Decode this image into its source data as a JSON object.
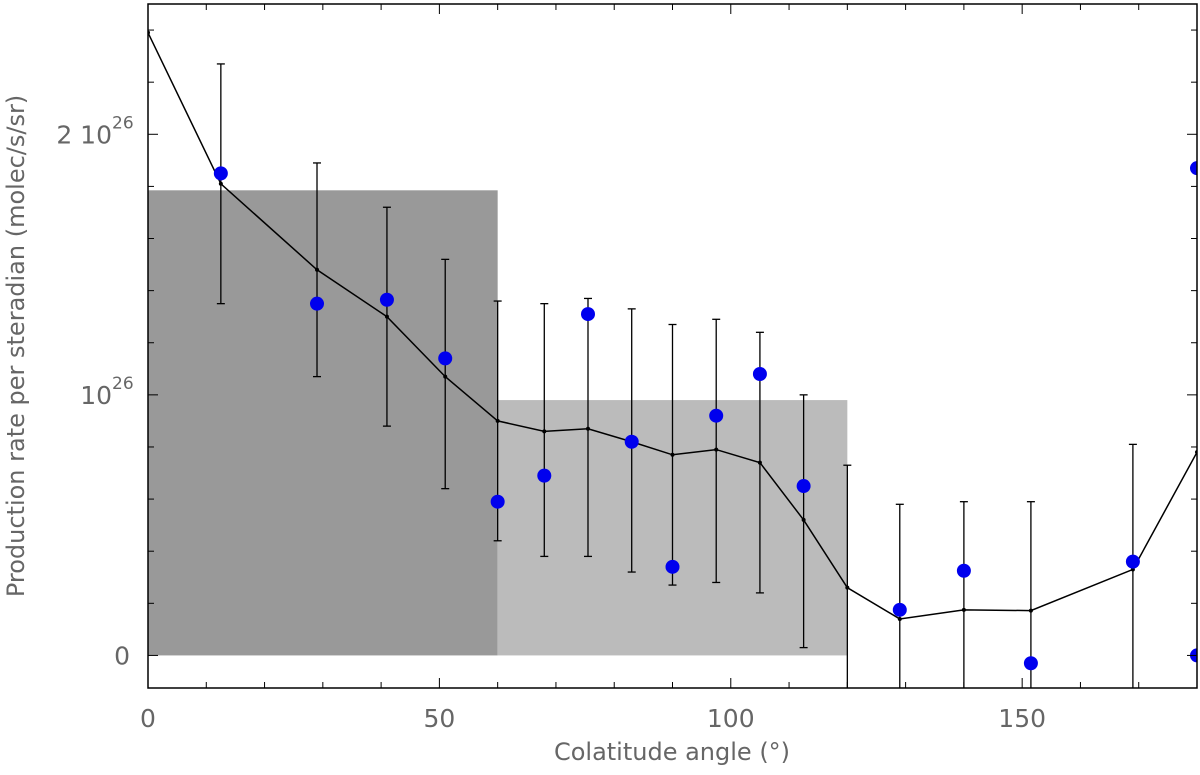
{
  "chart_data": {
    "type": "scatter",
    "title": "",
    "xlabel": "Colatitude angle (°)",
    "ylabel": "Production rate per steradian (molec/s/sr)",
    "xlim": [
      0,
      180
    ],
    "ylim": [
      -1.25e+25,
      2.5e+26
    ],
    "x_ticks": [
      {
        "value": 0,
        "label": "0"
      },
      {
        "value": 50,
        "label": "50"
      },
      {
        "value": 100,
        "label": "100"
      },
      {
        "value": 150,
        "label": "150"
      }
    ],
    "y_ticks": [
      {
        "value": 0,
        "mantissa": "0",
        "power": ""
      },
      {
        "value": 1e+26,
        "mantissa": "10",
        "power": "26"
      },
      {
        "value": 2e+26,
        "mantissa": "2 10",
        "power": "26"
      }
    ],
    "bands": [
      {
        "x0": 0,
        "x1": 60,
        "y0": 0,
        "y1": 1.785e+26,
        "color": "#999999"
      },
      {
        "x0": 60,
        "x1": 120,
        "y0": 0,
        "y1": 9.8e+25,
        "color": "#bbbbbb"
      }
    ],
    "model": {
      "color": "#000000",
      "x": [
        0,
        12.5,
        29,
        41,
        51,
        60,
        68,
        75.5,
        83,
        90,
        97.5,
        105,
        112.5,
        120,
        129,
        140,
        151.5,
        169,
        180
      ],
      "y": [
        2.39e+26,
        1.81e+26,
        1.48e+26,
        1.3e+26,
        1.07e+26,
        9e+25,
        8.6e+25,
        8.7e+25,
        8.2e+25,
        7.7e+25,
        7.9e+25,
        7.4e+25,
        5.2e+25,
        2.6e+25,
        1.4e+25,
        1.75e+25,
        1.72e+25,
        3.3e+25,
        7.8e+25
      ],
      "err_low": [
        null,
        1.35e+26,
        1.07e+26,
        8.8e+25,
        6.4e+25,
        4.4e+25,
        3.8e+25,
        3.8e+25,
        3.2e+25,
        2.7e+25,
        2.8e+25,
        2.4e+25,
        3e+24,
        -1.25e+25,
        -1.25e+25,
        -1.25e+25,
        -1.25e+25,
        -1.25e+25,
        null
      ],
      "err_high": [
        null,
        2.27e+26,
        1.89e+26,
        1.72e+26,
        1.52e+26,
        1.36e+26,
        1.35e+26,
        1.37e+26,
        1.33e+26,
        1.27e+26,
        1.29e+26,
        1.24e+26,
        1e+26,
        7.3e+25,
        5.8e+25,
        5.9e+25,
        5.9e+25,
        8.1e+25,
        null
      ]
    },
    "observed": {
      "color": "#0000ee",
      "x": [
        12.5,
        29,
        41,
        51,
        60,
        68,
        75.5,
        83,
        90,
        97.5,
        105,
        112.5,
        129,
        140,
        151.5,
        169,
        180,
        180
      ],
      "y": [
        1.85e+26,
        1.35e+26,
        1.365e+26,
        1.14e+26,
        5.9e+25,
        6.9e+25,
        1.31e+26,
        8.2e+25,
        3.4e+25,
        9.2e+25,
        1.08e+26,
        6.5e+25,
        1.75e+25,
        3.25e+25,
        -3e+24,
        3.6e+25,
        1.87e+26,
        0
      ]
    }
  }
}
